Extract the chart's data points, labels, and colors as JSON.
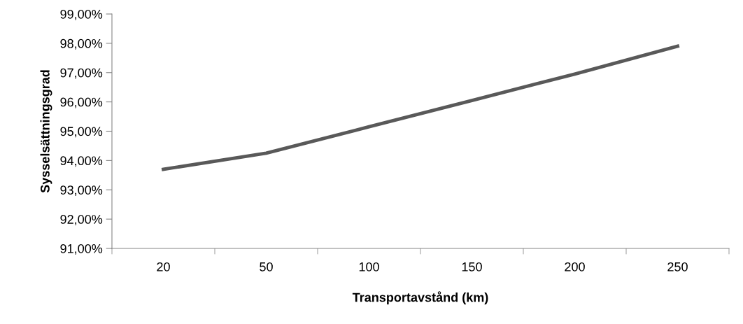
{
  "chart_data": {
    "type": "line",
    "xlabel": "Transportavstånd (km)",
    "ylabel": "Sysselsättningsgrad",
    "categories": [
      "20",
      "50",
      "100",
      "150",
      "200",
      "250"
    ],
    "series": [
      {
        "color": "#595959",
        "values": [
          93.7,
          94.25,
          95.15,
          96.05,
          96.95,
          97.9
        ]
      }
    ],
    "ylim": [
      91,
      99
    ],
    "yticks": [
      {
        "value": 91,
        "label": "91,00%"
      },
      {
        "value": 92,
        "label": "92,00%"
      },
      {
        "value": 93,
        "label": "93,00%"
      },
      {
        "value": 94,
        "label": "94,00%"
      },
      {
        "value": 95,
        "label": "95,00%"
      },
      {
        "value": 96,
        "label": "96,00%"
      },
      {
        "value": 97,
        "label": "97,00%"
      },
      {
        "value": 98,
        "label": "98,00%"
      },
      {
        "value": 99,
        "label": "99,00%"
      }
    ],
    "grid": false,
    "legend": false,
    "marker": "none",
    "line_style": "solid"
  }
}
